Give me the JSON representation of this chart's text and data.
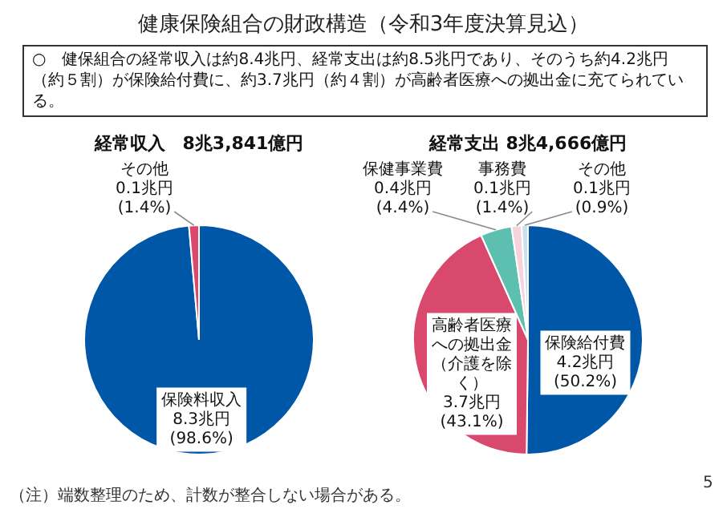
{
  "chart_data": [
    {
      "type": "pie",
      "title": "経常収入　8兆3,841億円",
      "categories": [
        "保険料収入",
        "その他"
      ],
      "values": [
        98.6,
        1.4
      ],
      "value_labels": [
        "8.3兆円 (98.6%)",
        "0.1兆円 (1.4%)"
      ],
      "colors": [
        "#0057a8",
        "#d9486d"
      ],
      "annotations": [
        "健康保険組合の財政構造（令和3年度決算見込）",
        "○　健保組合の経常収入は約8.4兆円、経常支出は約8.5兆円であり、そのうち約4.2兆円（約５割）が保険給付費に、約3.7兆円（約４割）が高齢者医療への拠出金に充てられている。",
        "（注）端数整理のため、計数が整合しない場合がある。",
        "5"
      ]
    },
    {
      "type": "pie",
      "title": "経常支出 8兆4,666億円",
      "categories": [
        "保険給付費",
        "高齢者医療への拠出金（介護を除く）",
        "保健事業費",
        "事務費",
        "その他"
      ],
      "values": [
        50.2,
        43.1,
        4.4,
        1.4,
        0.9
      ],
      "value_labels": [
        "4.2兆円 (50.2%)",
        "3.7兆円 (43.1%)",
        "0.4兆円 (4.4%)",
        "0.1兆円 (1.4%)",
        "0.1兆円 (0.9%)"
      ],
      "colors": [
        "#0057a8",
        "#d9486d",
        "#5cbfb0",
        "#f7d3dc",
        "#cde0ee"
      ]
    }
  ]
}
